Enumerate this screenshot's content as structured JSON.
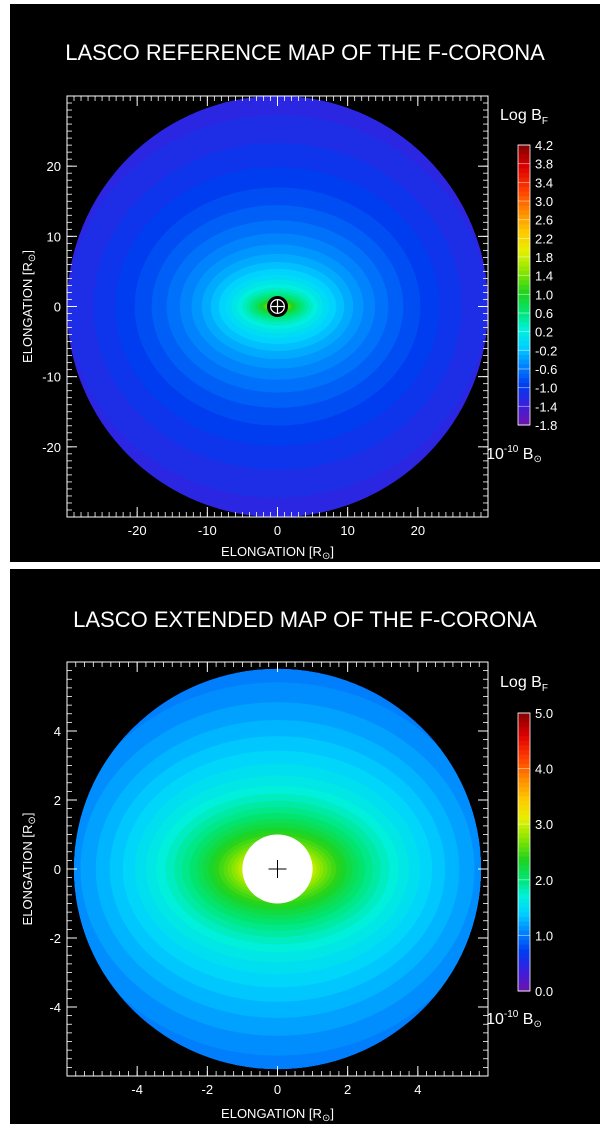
{
  "chart_data": [
    {
      "type": "heatmap",
      "title": "LASCO REFERENCE MAP OF THE F-CORONA",
      "xlabel": "ELONGATION [R",
      "ylabel": "ELONGATION [R",
      "axis_label_close": "]",
      "sun_symbol": "⊙",
      "xlim": [
        -30,
        30
      ],
      "ylim": [
        -30,
        30
      ],
      "xticks": [
        -20,
        -10,
        0,
        10,
        20
      ],
      "yticks": [
        -20,
        -10,
        0,
        10,
        20
      ],
      "field_radius": 30,
      "occulter_radius": 1.5,
      "occulter_style": "black-disk-with-sun-symbol",
      "colorbar": {
        "title_main": "Log B",
        "title_sub": "F",
        "unit_main": "10",
        "unit_exp": "-10",
        "unit_tail": " B",
        "range": [
          -1.8,
          4.2
        ],
        "ticks": [
          "4.2",
          "3.8",
          "3.4",
          "3.0",
          "2.6",
          "2.2",
          "1.8",
          "1.4",
          "1.0",
          "0.6",
          "0.2",
          "-0.2",
          "-0.6",
          "-1.0",
          "-1.4",
          "-1.8"
        ],
        "tick_values": [
          4.2,
          3.8,
          3.4,
          3.0,
          2.6,
          2.2,
          1.8,
          1.4,
          1.0,
          0.6,
          0.2,
          -0.2,
          -0.6,
          -1.0,
          -1.4,
          -1.8
        ]
      },
      "model": {
        "center_value": 1.45,
        "outer_value": -1.45,
        "ecliptic_axis_ratio": 1.7
      }
    },
    {
      "type": "heatmap",
      "title": "LASCO EXTENDED MAP OF THE F-CORONA",
      "xlabel": "ELONGATION [R",
      "ylabel": "ELONGATION [R",
      "axis_label_close": "]",
      "sun_symbol": "⊙",
      "xlim": [
        -6,
        6
      ],
      "ylim": [
        -6,
        6
      ],
      "xticks": [
        -4,
        -2,
        0,
        2,
        4
      ],
      "yticks": [
        -4,
        -2,
        0,
        2,
        4
      ],
      "field_radius": 5.8,
      "occulter_radius": 1.0,
      "occulter_style": "white-disk-with-cross",
      "colorbar": {
        "title_main": "Log B",
        "title_sub": "F",
        "unit_main": "10",
        "unit_exp": "-10",
        "unit_tail": " B",
        "range": [
          0.0,
          5.0
        ],
        "ticks": [
          "5.0",
          "4.0",
          "3.0",
          "2.0",
          "1.0",
          "0.0"
        ],
        "tick_values": [
          5.0,
          4.0,
          3.0,
          2.0,
          1.0,
          0.0
        ]
      },
      "model": {
        "center_value": 3.1,
        "outer_value": 0.8,
        "ecliptic_axis_ratio": 1.2
      }
    }
  ]
}
